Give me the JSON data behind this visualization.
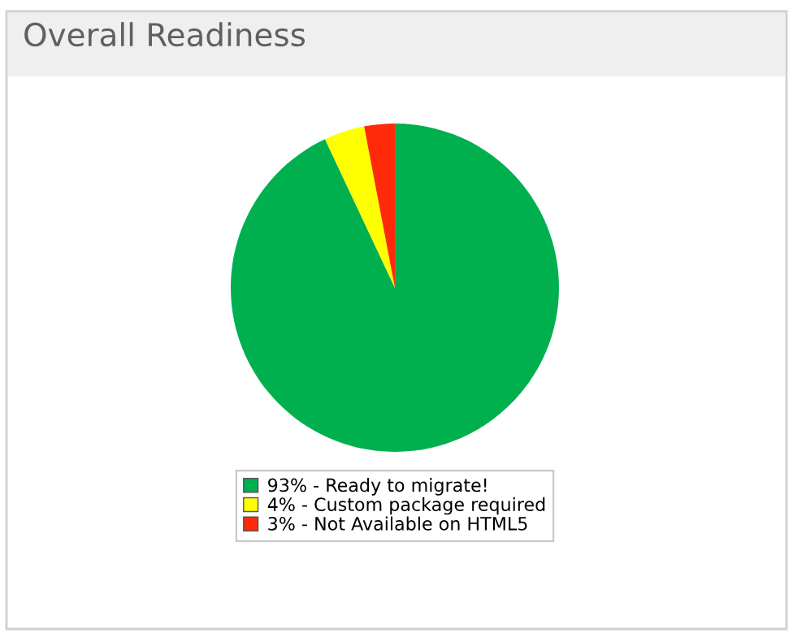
{
  "chart_data": {
    "type": "pie",
    "title": "Overall Readiness",
    "categories": [
      "Ready to migrate!",
      "Custom package required",
      "Not Available on HTML5"
    ],
    "values": [
      93,
      4,
      3
    ],
    "value_labels": [
      "93%",
      "4%",
      "3%"
    ],
    "colors": [
      "#00b04f",
      "#ffff00",
      "#ff2a0a"
    ],
    "legend": "bottom"
  }
}
